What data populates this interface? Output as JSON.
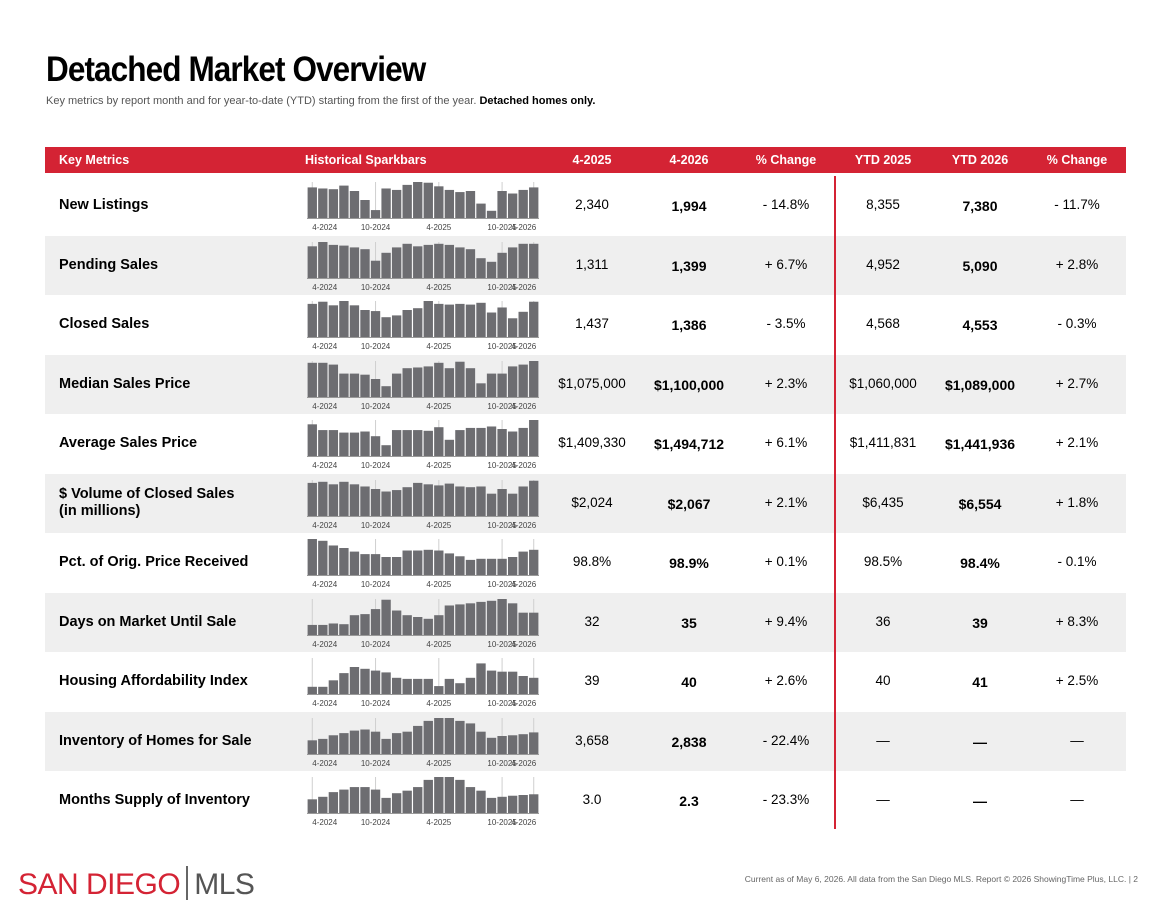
{
  "page": {
    "title": "Detached Market Overview",
    "subtitle_main": "Key metrics by report month and for year-to-date (YTD) starting from the first of the year.",
    "subtitle_bold": "Detached homes only."
  },
  "header": {
    "key_metrics": "Key Metrics",
    "sparkbars": "Historical Sparkbars",
    "col_prev": "4-2025",
    "col_curr": "4-2026",
    "col_change": "% Change",
    "col_ytd_prev": "YTD 2025",
    "col_ytd_curr": "YTD 2026",
    "col_ytd_change": "% Change"
  },
  "spark_axis_labels": [
    "4-2024",
    "10-2024",
    "4-2025",
    "10-2025",
    "4-2026"
  ],
  "rows": [
    {
      "label": "New Listings",
      "prev": "2,340",
      "curr": "1,994",
      "change": "- 14.8%",
      "ytd_prev": "8,355",
      "ytd_curr": "7,380",
      "ytd_change": "- 11.7%",
      "bars": [
        0.85,
        0.82,
        0.8,
        0.9,
        0.75,
        0.5,
        0.22,
        0.82,
        0.78,
        0.92,
        1.0,
        0.98,
        0.88,
        0.78,
        0.72,
        0.75,
        0.4,
        0.2,
        0.75,
        0.68,
        0.78,
        0.85
      ]
    },
    {
      "label": "Pending Sales",
      "prev": "1,311",
      "curr": "1,399",
      "change": "+ 6.7%",
      "ytd_prev": "4,952",
      "ytd_curr": "5,090",
      "ytd_change": "+ 2.8%",
      "bars": [
        0.88,
        1.0,
        0.92,
        0.9,
        0.85,
        0.8,
        0.48,
        0.7,
        0.85,
        0.95,
        0.88,
        0.92,
        0.95,
        0.92,
        0.85,
        0.8,
        0.55,
        0.45,
        0.7,
        0.85,
        0.95,
        0.95
      ]
    },
    {
      "label": "Closed Sales",
      "prev": "1,437",
      "curr": "1,386",
      "change": "- 3.5%",
      "ytd_prev": "4,568",
      "ytd_curr": "4,553",
      "ytd_change": "- 0.3%",
      "bars": [
        0.92,
        0.98,
        0.88,
        1.0,
        0.88,
        0.75,
        0.72,
        0.55,
        0.6,
        0.75,
        0.8,
        1.0,
        0.92,
        0.9,
        0.92,
        0.9,
        0.95,
        0.68,
        0.82,
        0.52,
        0.7,
        0.98
      ]
    },
    {
      "label": "Median Sales Price",
      "prev": "$1,075,000",
      "curr": "$1,100,000",
      "change": "+ 2.3%",
      "ytd_prev": "$1,060,000",
      "ytd_curr": "$1,089,000",
      "ytd_change": "+ 2.7%",
      "bars": [
        0.95,
        0.95,
        0.9,
        0.65,
        0.65,
        0.62,
        0.5,
        0.3,
        0.65,
        0.8,
        0.82,
        0.85,
        0.95,
        0.8,
        0.98,
        0.8,
        0.38,
        0.65,
        0.65,
        0.85,
        0.9,
        1.0
      ]
    },
    {
      "label": "Average Sales Price",
      "prev": "$1,409,330",
      "curr": "$1,494,712",
      "change": "+ 6.1%",
      "ytd_prev": "$1,411,831",
      "ytd_curr": "$1,441,936",
      "ytd_change": "+ 2.1%",
      "bars": [
        0.88,
        0.72,
        0.72,
        0.65,
        0.65,
        0.68,
        0.55,
        0.3,
        0.72,
        0.72,
        0.72,
        0.7,
        0.8,
        0.45,
        0.72,
        0.78,
        0.78,
        0.82,
        0.75,
        0.68,
        0.78,
        1.0
      ]
    },
    {
      "label": "$ Volume of Closed Sales",
      "label2": "(in millions)",
      "prev": "$2,024",
      "curr": "$2,067",
      "change": "+ 2.1%",
      "ytd_prev": "$6,435",
      "ytd_curr": "$6,554",
      "ytd_change": "+ 1.8%",
      "bars": [
        0.92,
        0.95,
        0.88,
        0.95,
        0.88,
        0.82,
        0.75,
        0.68,
        0.72,
        0.8,
        0.92,
        0.88,
        0.85,
        0.9,
        0.82,
        0.8,
        0.82,
        0.62,
        0.75,
        0.62,
        0.82,
        0.98
      ]
    },
    {
      "label": "Pct. of Orig. Price Received",
      "prev": "98.8%",
      "curr": "98.9%",
      "change": "+ 0.1%",
      "ytd_prev": "98.5%",
      "ytd_curr": "98.4%",
      "ytd_change": "- 0.1%",
      "bars": [
        1.0,
        0.95,
        0.82,
        0.75,
        0.65,
        0.58,
        0.58,
        0.5,
        0.5,
        0.68,
        0.68,
        0.7,
        0.68,
        0.6,
        0.52,
        0.42,
        0.45,
        0.45,
        0.45,
        0.5,
        0.65,
        0.7
      ]
    },
    {
      "label": "Days on Market Until Sale",
      "prev": "32",
      "curr": "35",
      "change": "+ 9.4%",
      "ytd_prev": "36",
      "ytd_curr": "39",
      "ytd_change": "+ 8.3%",
      "bars": [
        0.28,
        0.28,
        0.32,
        0.3,
        0.55,
        0.58,
        0.72,
        0.98,
        0.68,
        0.55,
        0.5,
        0.45,
        0.55,
        0.82,
        0.85,
        0.88,
        0.92,
        0.95,
        1.0,
        0.88,
        0.62,
        0.62
      ]
    },
    {
      "label": "Housing Affordability Index",
      "prev": "39",
      "curr": "40",
      "change": "+ 2.6%",
      "ytd_prev": "40",
      "ytd_curr": "41",
      "ytd_change": "+ 2.5%",
      "bars": [
        0.2,
        0.2,
        0.38,
        0.58,
        0.75,
        0.7,
        0.65,
        0.6,
        0.45,
        0.42,
        0.42,
        0.42,
        0.22,
        0.42,
        0.3,
        0.45,
        0.85,
        0.65,
        0.62,
        0.62,
        0.5,
        0.45
      ]
    },
    {
      "label": "Inventory of Homes for Sale",
      "prev": "3,658",
      "curr": "2,838",
      "change": "- 22.4%",
      "ytd_prev": "—",
      "ytd_curr": "—",
      "ytd_change": "—",
      "bars": [
        0.38,
        0.42,
        0.52,
        0.58,
        0.65,
        0.68,
        0.62,
        0.42,
        0.58,
        0.62,
        0.78,
        0.92,
        1.0,
        1.0,
        0.92,
        0.85,
        0.62,
        0.45,
        0.5,
        0.52,
        0.55,
        0.6
      ]
    },
    {
      "label": "Months Supply of Inventory",
      "prev": "3.0",
      "curr": "2.3",
      "change": "- 23.3%",
      "ytd_prev": "—",
      "ytd_curr": "—",
      "ytd_change": "—",
      "bars": [
        0.38,
        0.45,
        0.58,
        0.65,
        0.72,
        0.72,
        0.65,
        0.42,
        0.55,
        0.62,
        0.72,
        0.92,
        1.0,
        1.0,
        0.92,
        0.72,
        0.62,
        0.42,
        0.45,
        0.48,
        0.5,
        0.52
      ]
    }
  ],
  "footer": {
    "logo_left": "SAN DIEGO",
    "logo_right": "MLS",
    "note": "Current as of May 6, 2026. All data from the San Diego MLS. Report © 2026 ShowingTime Plus, LLC.  |  2"
  },
  "colors": {
    "accent": "#d42334",
    "bar": "#6d6d71",
    "row_shade": "#efefef"
  }
}
